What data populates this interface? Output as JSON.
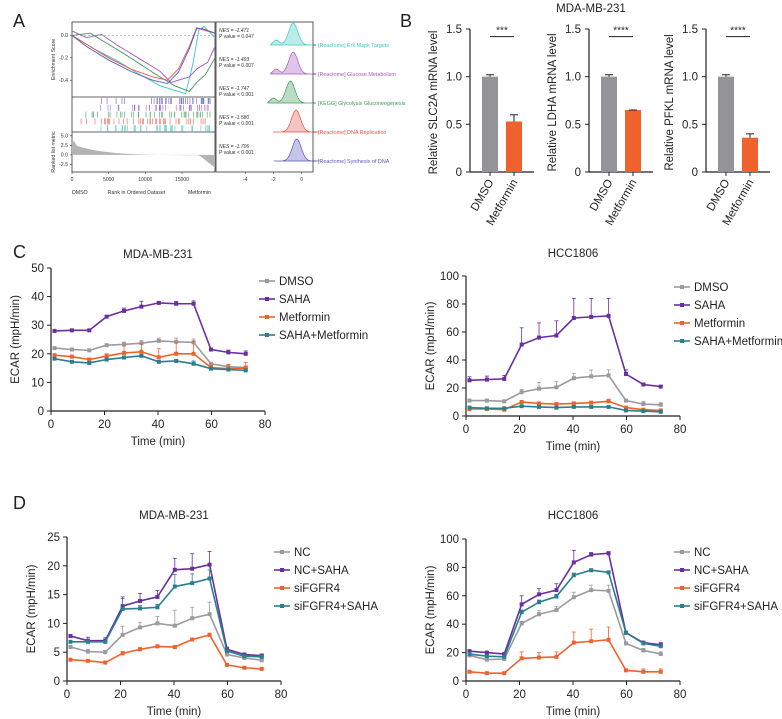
{
  "panel_labels": [
    "A",
    "B",
    "C",
    "D"
  ],
  "chart_data": [
    {
      "panel": "A",
      "type": "line",
      "subtype": "gsea-enrichment",
      "xlabel_left": "DMSO",
      "xlabel_center": "Rank in Ordered Dataset",
      "xlabel_right": "Metformin",
      "ylabel": "Enrichment Score",
      "ylabel_metric": "Ranked list metric",
      "xticks": [
        "0",
        "5000",
        "10000",
        "15000"
      ],
      "xlim": [
        0,
        19500
      ],
      "yticks": [
        "0.0",
        "-0.2",
        "-0.4"
      ],
      "ylim": [
        -0.55,
        0.12
      ],
      "metric_yticks": [
        "5.0",
        "2.5",
        "0.0",
        "-2.5"
      ],
      "metric_ylim": [
        -4.5,
        6
      ],
      "ridge_xticks": [
        "-4",
        "-2",
        "0"
      ],
      "ridge_xlim": [
        -5.5,
        0.8
      ],
      "gene_sets": [
        {
          "name": "[Reactome] Erk Mapk Targets",
          "nes": "NES = -1.471",
          "p": "P value = 0.047",
          "color": "#3cc8c4",
          "es": [
            [
              0,
              0.0
            ],
            [
              3000,
              -0.12
            ],
            [
              6000,
              -0.22
            ],
            [
              9000,
              -0.34
            ],
            [
              12000,
              -0.45
            ],
            [
              15500,
              -0.52
            ],
            [
              16500,
              -0.25
            ],
            [
              17300,
              0.05
            ],
            [
              18000,
              0.08
            ],
            [
              19500,
              -0.02
            ]
          ]
        },
        {
          "name": "[Reactome] Glucose Metabolism",
          "nes": "NES = -1.493",
          "p": "P value = 0.007",
          "color": "#a45ac2",
          "es": [
            [
              0,
              0.04
            ],
            [
              2000,
              -0.02
            ],
            [
              4000,
              0.01
            ],
            [
              6000,
              -0.08
            ],
            [
              9000,
              -0.2
            ],
            [
              12000,
              -0.32
            ],
            [
              13500,
              -0.42
            ],
            [
              16000,
              -0.37
            ],
            [
              17000,
              -0.3
            ],
            [
              18500,
              -0.24
            ],
            [
              19500,
              -0.1
            ]
          ]
        },
        {
          "name": "[KEGG] Glycolysis Gluconeogenesis",
          "nes": "NES = -1.747",
          "p": "P value < 0.001",
          "color": "#3e9a5a",
          "es": [
            [
              0,
              0.0
            ],
            [
              2500,
              0.02
            ],
            [
              5000,
              -0.08
            ],
            [
              8000,
              -0.2
            ],
            [
              11000,
              -0.33
            ],
            [
              14000,
              -0.45
            ],
            [
              16000,
              -0.5
            ],
            [
              17000,
              -0.42
            ],
            [
              18200,
              -0.35
            ],
            [
              19500,
              -0.2
            ]
          ]
        },
        {
          "name": "[Reactome] DNA Replication",
          "nes": "NES = -1.580",
          "p": "P value < 0.001",
          "color": "#e8524a",
          "es": [
            [
              0,
              0.0
            ],
            [
              2000,
              -0.08
            ],
            [
              5000,
              -0.2
            ],
            [
              8000,
              -0.3
            ],
            [
              11000,
              -0.37
            ],
            [
              13000,
              -0.4
            ],
            [
              14500,
              -0.3
            ],
            [
              16000,
              -0.1
            ],
            [
              17000,
              0.07
            ],
            [
              17800,
              0.05
            ],
            [
              19500,
              0.02
            ]
          ]
        },
        {
          "name": "[Reactome] Synthesis of DNA",
          "nes": "NES = -1.706",
          "p": "P value < 0.001",
          "color": "#5a58c0",
          "es": [
            [
              0,
              0.0
            ],
            [
              2000,
              -0.1
            ],
            [
              5000,
              -0.22
            ],
            [
              8000,
              -0.32
            ],
            [
              11000,
              -0.4
            ],
            [
              13000,
              -0.43
            ],
            [
              14500,
              -0.33
            ],
            [
              16000,
              -0.12
            ],
            [
              17000,
              0.06
            ],
            [
              17800,
              0.06
            ],
            [
              19500,
              0.02
            ]
          ]
        }
      ]
    },
    {
      "panel": "B",
      "type": "bar",
      "title": "MDA-MB-231",
      "categories": [
        "DMSO",
        "Metformin"
      ],
      "colors": [
        "#939398",
        "#f0622d"
      ],
      "ylim": [
        0,
        1.5
      ],
      "yticks": [
        "0",
        "0.5",
        "1.0",
        "1.5"
      ],
      "subplots": [
        {
          "ylabel": "Relative SLC2A mRNA level",
          "values": [
            1.0,
            0.53
          ],
          "errors": [
            0.02,
            0.07
          ],
          "significance": "***"
        },
        {
          "ylabel": "Relative LDHA mRNA level",
          "values": [
            1.0,
            0.65
          ],
          "errors": [
            0.02,
            0.0
          ],
          "significance": "****"
        },
        {
          "ylabel": "Relative PFKL mRNA level",
          "values": [
            1.0,
            0.36
          ],
          "errors": [
            0.02,
            0.04
          ],
          "significance": "****"
        }
      ]
    },
    {
      "panel": "C",
      "type": "line",
      "title": "MDA-MB-231",
      "xlabel": "Time (min)",
      "ylabel": "ECAR (mpH/min)",
      "x": [
        1.3,
        7.8,
        14.3,
        20.8,
        27.3,
        33.8,
        40.3,
        46.8,
        53.3,
        59.8,
        66.3,
        72.8
      ],
      "xlim": [
        0,
        80
      ],
      "xticks": [
        "0",
        "20",
        "40",
        "60",
        "80"
      ],
      "ylim": [
        0,
        50
      ],
      "yticks": [
        "0",
        "10",
        "20",
        "30",
        "40",
        "50"
      ],
      "legend_position": "right",
      "series": [
        {
          "name": "DMSO",
          "color": "#9b9b9f",
          "marker": "circle",
          "values": [
            22,
            21.5,
            21.2,
            23,
            23.3,
            23.7,
            24.5,
            24.2,
            24,
            16.5,
            15.5,
            15.2
          ],
          "errors": [
            0.3,
            0.4,
            0.3,
            0.5,
            0.8,
            0.9,
            1,
            1.3,
            1.2,
            0.5,
            0.8,
            0.6
          ]
        },
        {
          "name": "SAHA",
          "color": "#6a2ea0",
          "marker": "square",
          "values": [
            28,
            28.2,
            28.2,
            33,
            35,
            36.5,
            37.8,
            37.5,
            37.5,
            21.5,
            20.5,
            20
          ],
          "errors": [
            0.3,
            0.3,
            0.3,
            0.4,
            1.0,
            1.9,
            0.5,
            0.8,
            1.0,
            0.4,
            0.8,
            1.0
          ]
        },
        {
          "name": "Metformin",
          "color": "#f0622d",
          "marker": "triangle",
          "values": [
            19.5,
            19,
            18,
            19.2,
            20.3,
            20.7,
            18.8,
            20,
            20,
            15.2,
            14.8,
            15
          ],
          "errors": [
            0.4,
            0.5,
            0.5,
            0.8,
            2.5,
            3.0,
            3.0,
            4.0,
            4.5,
            0.8,
            1.5,
            2.0
          ]
        },
        {
          "name": "SAHA+Metformin",
          "color": "#2a7f8f",
          "marker": "triangle-down",
          "values": [
            18.3,
            17.2,
            16.8,
            18,
            18.7,
            19.3,
            17.2,
            17.5,
            16.5,
            14.8,
            14.5,
            14.2
          ],
          "errors": [
            0.3,
            0.3,
            0.3,
            0.5,
            0.5,
            0.5,
            0.5,
            0.5,
            1.0,
            0.4,
            0.4,
            0.5
          ]
        }
      ]
    },
    {
      "panel": "C",
      "type": "line",
      "title": "HCC1806",
      "xlabel": "Time (min)",
      "ylabel": "ECAR (mpH/min)",
      "x": [
        1.3,
        7.8,
        14.3,
        20.8,
        27.3,
        33.8,
        40.3,
        46.8,
        53.3,
        59.8,
        66.3,
        72.8
      ],
      "xlim": [
        0,
        80
      ],
      "xticks": [
        "0",
        "20",
        "40",
        "60",
        "80"
      ],
      "ylim": [
        0,
        100
      ],
      "yticks": [
        "0",
        "20",
        "40",
        "60",
        "80",
        "100"
      ],
      "legend_position": "right",
      "series": [
        {
          "name": "DMSO",
          "color": "#9b9b9f",
          "marker": "circle",
          "values": [
            11,
            11,
            10.5,
            17,
            19.5,
            20.5,
            27,
            28.3,
            29,
            11,
            8.5,
            8
          ],
          "errors": [
            0.5,
            0.5,
            0.5,
            2,
            4.5,
            4,
            3.5,
            4.5,
            4,
            1,
            2,
            1.5
          ]
        },
        {
          "name": "SAHA",
          "color": "#6a2ea0",
          "marker": "square",
          "values": [
            25.5,
            26,
            26.5,
            51,
            56,
            57.5,
            70,
            70.8,
            71.5,
            30,
            22.5,
            21
          ],
          "errors": [
            2.5,
            2.5,
            2.5,
            12,
            10.5,
            10.5,
            14,
            13.2,
            12.5,
            3,
            0.8,
            0.8
          ]
        },
        {
          "name": "Metformin",
          "color": "#f0622d",
          "marker": "triangle",
          "values": [
            5,
            5,
            4.5,
            10,
            9,
            8.5,
            9,
            9.5,
            10.5,
            6,
            4.5,
            4
          ],
          "errors": [
            0.5,
            0.5,
            0.5,
            0.5,
            1,
            1,
            1,
            1,
            1.5,
            0.5,
            0.5,
            0.5
          ]
        },
        {
          "name": "SAHA+Metformin",
          "color": "#2a7f8f",
          "marker": "triangle-down",
          "values": [
            6,
            5.5,
            5.5,
            7,
            6.5,
            6,
            6.5,
            6.5,
            6.5,
            4,
            3.5,
            3
          ],
          "errors": [
            0.3,
            0.3,
            0.3,
            0.5,
            0.5,
            0.5,
            0.5,
            0.5,
            0.5,
            0.3,
            0.3,
            0.3
          ]
        }
      ]
    },
    {
      "panel": "D",
      "type": "line",
      "title": "MDA-MB-231",
      "xlabel": "Time (min)",
      "ylabel": "ECAR (mpH/min)",
      "x": [
        1.3,
        7.8,
        14.3,
        20.8,
        27.3,
        33.8,
        40.3,
        46.8,
        53.3,
        59.8,
        66.3,
        72.8
      ],
      "xlim": [
        0,
        80
      ],
      "xticks": [
        "0",
        "20",
        "40",
        "60",
        "80"
      ],
      "ylim": [
        0,
        25
      ],
      "yticks": [
        "0",
        "5",
        "10",
        "15",
        "20",
        "25"
      ],
      "legend_position": "right",
      "series": [
        {
          "name": "NC",
          "color": "#9b9b9f",
          "marker": "circle",
          "values": [
            5.9,
            5.1,
            5,
            8,
            9.3,
            10,
            9.6,
            10.9,
            11.6,
            4.6,
            4,
            3.6
          ],
          "errors": [
            0.3,
            0.4,
            0.3,
            1.5,
            0.9,
            1.2,
            2.7,
            1.9,
            2.1,
            0.3,
            0.3,
            0.3
          ]
        },
        {
          "name": "NC+SAHA",
          "color": "#6a2ea0",
          "marker": "square",
          "values": [
            7.8,
            7,
            7,
            13,
            13.9,
            14.6,
            19.3,
            19.5,
            20.2,
            5.5,
            4.6,
            4.4
          ],
          "errors": [
            0.2,
            0.6,
            0.5,
            1.6,
            1.3,
            1.1,
            2.0,
            2.6,
            2.3,
            0.4,
            0.2,
            0.3
          ]
        },
        {
          "name": "siFGFR4",
          "color": "#f0622d",
          "marker": "triangle",
          "values": [
            3.7,
            3.5,
            3.2,
            4.8,
            5.5,
            6,
            5.9,
            7.2,
            8,
            2.8,
            2.3,
            2.1
          ],
          "errors": [
            0.2,
            0.2,
            0.2,
            0.3,
            0.3,
            0.3,
            0.2,
            0.2,
            0.3,
            0.2,
            0.2,
            0.2
          ]
        },
        {
          "name": "siFGFR4+SAHA",
          "color": "#2a7f8f",
          "marker": "triangle-down",
          "values": [
            6.8,
            6.8,
            6.8,
            12.5,
            12.6,
            12.8,
            16.4,
            17,
            17.8,
            5.2,
            4.3,
            4.2
          ],
          "errors": [
            0.2,
            0.3,
            0.3,
            1.8,
            0.5,
            0.5,
            2.1,
            1.6,
            1.5,
            0.3,
            0.2,
            0.2
          ]
        }
      ]
    },
    {
      "panel": "D",
      "type": "line",
      "title": "HCC1806",
      "xlabel": "Time (min)",
      "ylabel": "ECAR (mpH/min)",
      "x": [
        1.3,
        7.8,
        14.3,
        20.8,
        27.3,
        33.8,
        40.3,
        46.8,
        53.3,
        59.8,
        66.3,
        72.8
      ],
      "xlim": [
        0,
        80
      ],
      "xticks": [
        "0",
        "20",
        "40",
        "60",
        "80"
      ],
      "ylim": [
        0,
        100
      ],
      "yticks": [
        "0",
        "20",
        "40",
        "60",
        "80",
        "100"
      ],
      "legend_position": "right",
      "series": [
        {
          "name": "NC",
          "color": "#9b9b9f",
          "marker": "circle",
          "values": [
            18,
            15,
            15.5,
            40.5,
            47,
            50,
            59,
            64,
            63.5,
            26.5,
            21.5,
            19
          ],
          "errors": [
            1,
            1,
            1,
            1.5,
            2.5,
            2.5,
            3.5,
            3.5,
            4,
            1,
            1.5,
            1.5
          ]
        },
        {
          "name": "NC+SAHA",
          "color": "#6a2ea0",
          "marker": "square",
          "values": [
            21,
            20,
            19,
            54,
            61,
            64,
            83.5,
            89,
            90,
            34,
            27,
            25.5
          ],
          "errors": [
            1,
            1,
            1,
            6,
            4,
            4.5,
            8.5,
            1.5,
            1,
            1,
            1,
            1.5
          ]
        },
        {
          "name": "siFGFR4",
          "color": "#f0622d",
          "marker": "triangle",
          "values": [
            6.5,
            5.5,
            5.5,
            16,
            16.5,
            17,
            27,
            28,
            29,
            7.5,
            6.5,
            6.5
          ],
          "errors": [
            0.5,
            0.5,
            0.5,
            4.5,
            3.5,
            3.5,
            7.5,
            8.5,
            9,
            0.5,
            2,
            2
          ]
        },
        {
          "name": "siFGFR4+SAHA",
          "color": "#2a7f8f",
          "marker": "triangle-down",
          "values": [
            19,
            17.5,
            17,
            48.5,
            55.5,
            59.5,
            74.5,
            78,
            76.5,
            34,
            26.5,
            24.5
          ],
          "errors": [
            1,
            1,
            1,
            1.5,
            1.5,
            1.5,
            1.5,
            1,
            1,
            1,
            1,
            1
          ]
        }
      ]
    }
  ]
}
